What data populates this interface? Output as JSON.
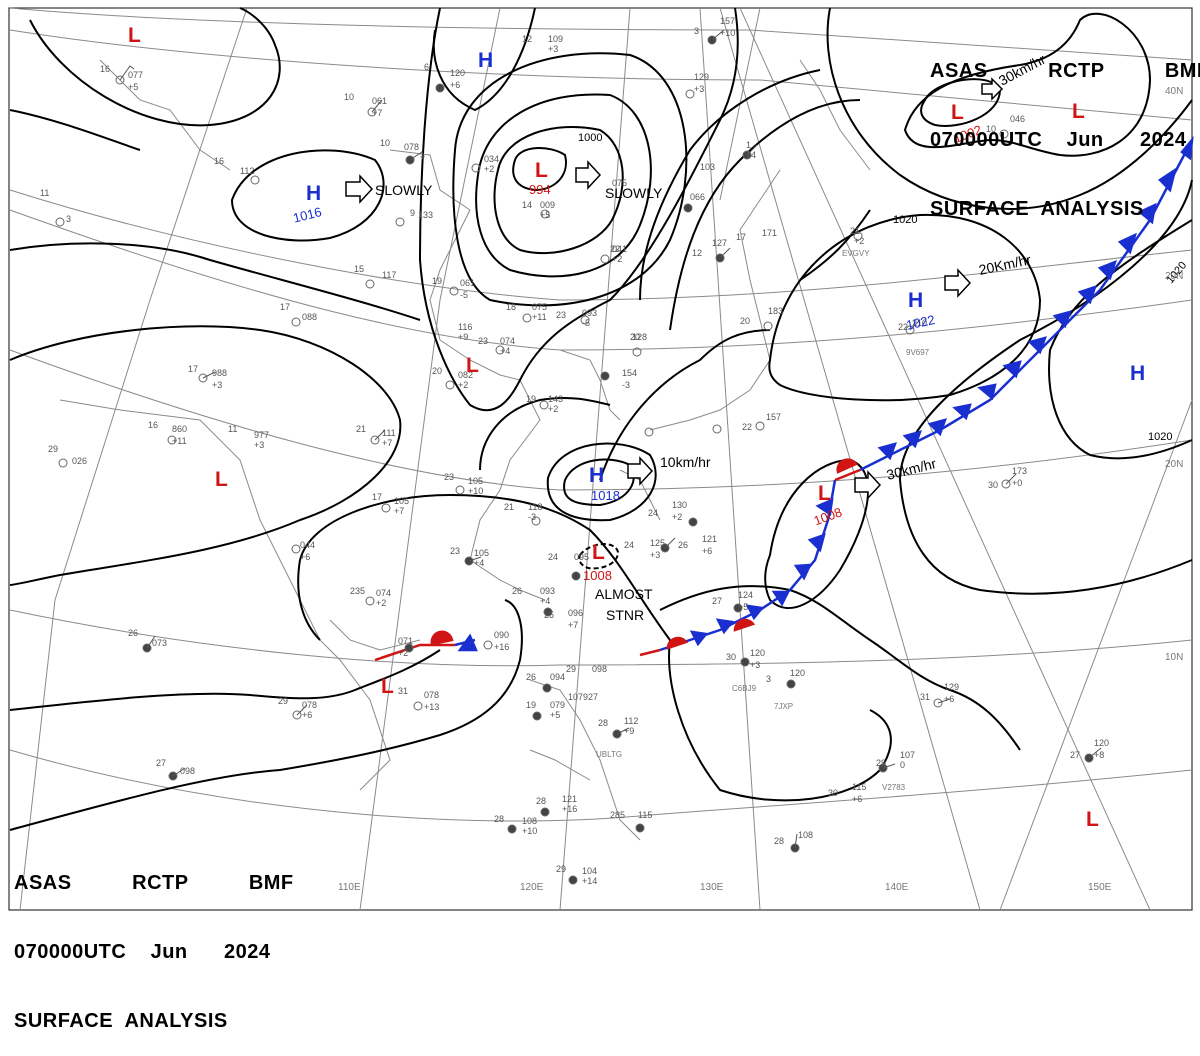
{
  "header_top": {
    "line1": [
      "ASAS",
      "RCTP",
      "BMF"
    ],
    "line2": [
      "070000UTC",
      "Jun",
      "2024"
    ],
    "line3": "SURFACE  ANALYSIS"
  },
  "header_bottom": {
    "line1": [
      "ASAS",
      "RCTP",
      "BMF"
    ],
    "line2": [
      "070000UTC",
      "Jun",
      "2024"
    ],
    "line3": "SURFACE  ANALYSIS"
  },
  "colors": {
    "high": "#1a2fd0",
    "low": "#d11414",
    "isobar": "#000000",
    "grid": "#8a8a8a",
    "coast": "#888888"
  },
  "longitudes": [
    "110E",
    "120E",
    "130E",
    "140E",
    "150E"
  ],
  "latitudes": [
    "40N",
    "20N",
    "10N"
  ],
  "latitude_extra": [
    "20N"
  ],
  "isobar_labels": [
    "1000",
    "1020",
    "1020",
    "1020"
  ],
  "pressure_systems": [
    {
      "type": "L",
      "value": ""
    },
    {
      "type": "H",
      "value": ""
    },
    {
      "type": "L",
      "value": "994"
    },
    {
      "type": "H",
      "value": "1016"
    },
    {
      "type": "L",
      "value": "1002"
    },
    {
      "type": "L",
      "value": ""
    },
    {
      "type": "H",
      "value": "1022"
    },
    {
      "type": "H",
      "value": ""
    },
    {
      "type": "L",
      "value": ""
    },
    {
      "type": "L",
      "value": ""
    },
    {
      "type": "H",
      "value": "1018"
    },
    {
      "type": "L",
      "value": "1008"
    },
    {
      "type": "L",
      "value": "1008"
    },
    {
      "type": "L",
      "value": ""
    },
    {
      "type": "L",
      "value": ""
    }
  ],
  "motion_labels": [
    "SLOWLY",
    "SLOWLY",
    "30km/hr",
    "20Km/hr",
    "10km/hr",
    "30km/hr",
    "ALMOST",
    "STNR"
  ],
  "station_labels": [
    "EVGVY",
    "9V697",
    "C6BJ9",
    "7JXP",
    "V2783",
    "UBLTG"
  ]
}
